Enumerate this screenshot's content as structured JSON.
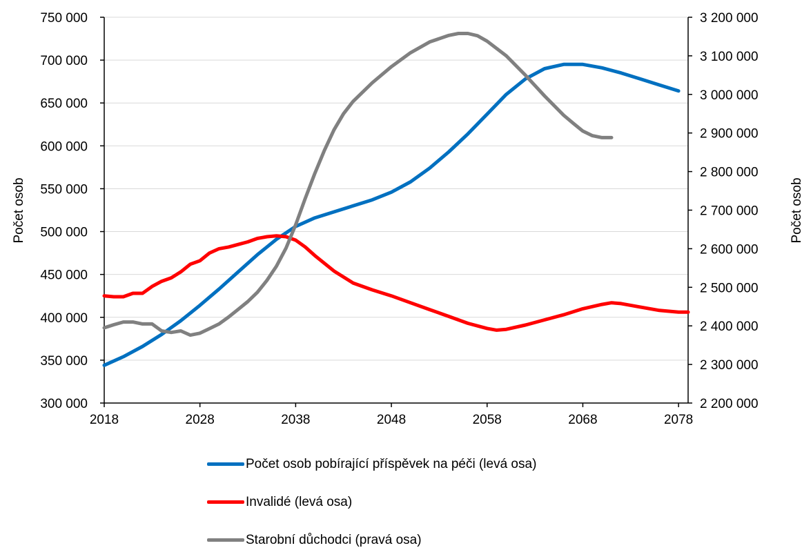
{
  "chart_data": {
    "type": "line",
    "xlabel": "",
    "ylabel_left": "Počet osob",
    "ylabel_right": "Počet osob",
    "x_ticks": [
      2018,
      2028,
      2038,
      2048,
      2058,
      2068,
      2078
    ],
    "x_range": [
      2018,
      2079
    ],
    "ylim_left": [
      300000,
      750000
    ],
    "ylim_right": [
      2200000,
      3200000
    ],
    "y_ticks_left": [
      "300 000",
      "350 000",
      "400 000",
      "450 000",
      "500 000",
      "550 000",
      "600 000",
      "650 000",
      "700 000",
      "750 000"
    ],
    "y_ticks_right": [
      "2 200 000",
      "2 300 000",
      "2 400 000",
      "2 500 000",
      "2 600 000",
      "2 700 000",
      "2 800 000",
      "2 900 000",
      "3 000 000",
      "3 100 000",
      "3 200 000"
    ],
    "grid": true,
    "legend_position": "bottom",
    "series": [
      {
        "name": "Počet osob pobírající příspěvek na péči (levá osa)",
        "axis": "left",
        "color": "#0070C0",
        "points": [
          [
            2018,
            344000
          ],
          [
            2020,
            354000
          ],
          [
            2022,
            366000
          ],
          [
            2024,
            380000
          ],
          [
            2026,
            396000
          ],
          [
            2028,
            414000
          ],
          [
            2030,
            433000
          ],
          [
            2032,
            453000
          ],
          [
            2034,
            473000
          ],
          [
            2036,
            491000
          ],
          [
            2038,
            506000
          ],
          [
            2040,
            516000
          ],
          [
            2042,
            523000
          ],
          [
            2044,
            530000
          ],
          [
            2046,
            537000
          ],
          [
            2048,
            546000
          ],
          [
            2050,
            558000
          ],
          [
            2052,
            574000
          ],
          [
            2054,
            593000
          ],
          [
            2056,
            614000
          ],
          [
            2058,
            637000
          ],
          [
            2060,
            660000
          ],
          [
            2062,
            678000
          ],
          [
            2064,
            690000
          ],
          [
            2066,
            695000
          ],
          [
            2068,
            695000
          ],
          [
            2070,
            691000
          ],
          [
            2072,
            685000
          ],
          [
            2074,
            678000
          ],
          [
            2076,
            671000
          ],
          [
            2078,
            664000
          ]
        ]
      },
      {
        "name": "Invalidé (levá osa)",
        "axis": "left",
        "color": "#FF0000",
        "points": [
          [
            2018,
            425000
          ],
          [
            2019,
            424000
          ],
          [
            2020,
            424000
          ],
          [
            2021,
            428000
          ],
          [
            2022,
            428000
          ],
          [
            2023,
            436000
          ],
          [
            2024,
            442000
          ],
          [
            2025,
            446000
          ],
          [
            2026,
            453000
          ],
          [
            2027,
            462000
          ],
          [
            2028,
            466000
          ],
          [
            2029,
            475000
          ],
          [
            2030,
            480000
          ],
          [
            2031,
            482000
          ],
          [
            2032,
            485000
          ],
          [
            2033,
            488000
          ],
          [
            2034,
            492000
          ],
          [
            2035,
            494000
          ],
          [
            2036,
            495000
          ],
          [
            2037,
            494000
          ],
          [
            2038,
            490000
          ],
          [
            2039,
            482000
          ],
          [
            2040,
            472000
          ],
          [
            2042,
            454000
          ],
          [
            2044,
            440000
          ],
          [
            2046,
            432000
          ],
          [
            2048,
            425000
          ],
          [
            2050,
            417000
          ],
          [
            2052,
            409000
          ],
          [
            2054,
            401000
          ],
          [
            2056,
            393000
          ],
          [
            2058,
            387000
          ],
          [
            2059,
            385000
          ],
          [
            2060,
            386000
          ],
          [
            2062,
            391000
          ],
          [
            2064,
            397000
          ],
          [
            2066,
            403000
          ],
          [
            2068,
            410000
          ],
          [
            2070,
            415000
          ],
          [
            2071,
            417000
          ],
          [
            2072,
            416000
          ],
          [
            2074,
            412000
          ],
          [
            2076,
            408000
          ],
          [
            2078,
            406000
          ],
          [
            2079,
            406000
          ]
        ]
      },
      {
        "name": "Starobní důchodci (pravá osa)",
        "axis": "right",
        "color": "#808080",
        "points": [
          [
            2018,
            2395000
          ],
          [
            2019,
            2403000
          ],
          [
            2020,
            2410000
          ],
          [
            2021,
            2410000
          ],
          [
            2022,
            2405000
          ],
          [
            2023,
            2405000
          ],
          [
            2024,
            2387000
          ],
          [
            2025,
            2383000
          ],
          [
            2026,
            2387000
          ],
          [
            2027,
            2376000
          ],
          [
            2028,
            2381000
          ],
          [
            2029,
            2393000
          ],
          [
            2030,
            2405000
          ],
          [
            2031,
            2423000
          ],
          [
            2032,
            2443000
          ],
          [
            2033,
            2463000
          ],
          [
            2034,
            2487000
          ],
          [
            2035,
            2518000
          ],
          [
            2036,
            2555000
          ],
          [
            2037,
            2602000
          ],
          [
            2038,
            2662000
          ],
          [
            2039,
            2730000
          ],
          [
            2040,
            2795000
          ],
          [
            2041,
            2855000
          ],
          [
            2042,
            2908000
          ],
          [
            2043,
            2950000
          ],
          [
            2044,
            2982000
          ],
          [
            2046,
            3030000
          ],
          [
            2048,
            3072000
          ],
          [
            2050,
            3108000
          ],
          [
            2052,
            3136000
          ],
          [
            2054,
            3153000
          ],
          [
            2055,
            3158000
          ],
          [
            2056,
            3158000
          ],
          [
            2057,
            3152000
          ],
          [
            2058,
            3138000
          ],
          [
            2060,
            3100000
          ],
          [
            2062,
            3050000
          ],
          [
            2064,
            2996000
          ],
          [
            2066,
            2946000
          ],
          [
            2067,
            2925000
          ],
          [
            2068,
            2905000
          ],
          [
            2069,
            2893000
          ],
          [
            2070,
            2888000
          ],
          [
            2071,
            2888000
          ]
        ]
      }
    ]
  }
}
